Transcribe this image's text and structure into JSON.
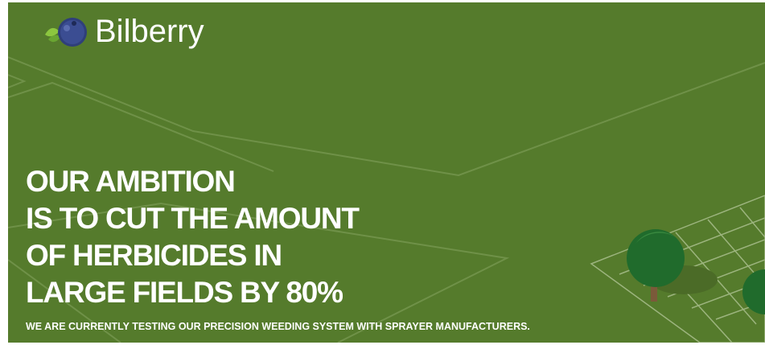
{
  "logo": {
    "text": "Bilberry"
  },
  "headline": {
    "lines": [
      "OUR AMBITION",
      "IS TO CUT THE AMOUNT",
      "OF HERBICIDES IN",
      "LARGE FIELDS BY 80%"
    ]
  },
  "subheadline": "WE ARE CURRENTLY TESTING OUR PRECISION WEEDING SYSTEM WITH SPRAYER MANUFACTURERS."
}
